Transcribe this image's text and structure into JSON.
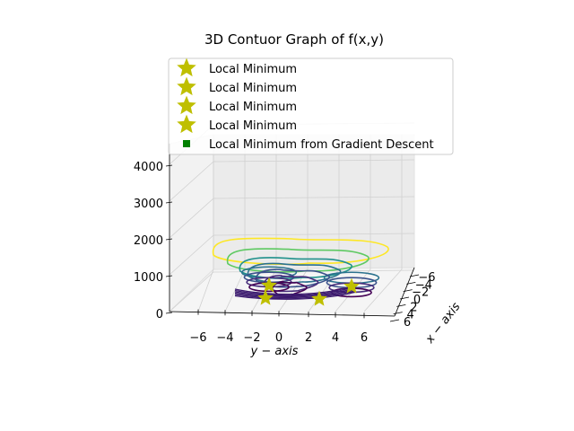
{
  "chart_data": {
    "type": "3d-contour",
    "title": "3D Contuor Graph of f(x,y)",
    "xlabel": "x − axis",
    "ylabel": "y − axis",
    "zlabel": "",
    "y_ticks": [
      "−6",
      "−4",
      "−2",
      "0",
      "2",
      "4",
      "6"
    ],
    "x_ticks": [
      "−6",
      "−4",
      "−2",
      "0",
      "2",
      "4",
      "6"
    ],
    "z_ticks": [
      "0",
      "1000",
      "2000",
      "3000",
      "4000"
    ],
    "zlim": [
      0,
      4400
    ],
    "grid": true,
    "colormap": "viridis",
    "legend": {
      "placement": "top",
      "entries": [
        {
          "label": "Local Minimum",
          "marker": "star",
          "color": "#bfbf00"
        },
        {
          "label": "Local Minimum",
          "marker": "star",
          "color": "#bfbf00"
        },
        {
          "label": "Local Minimum",
          "marker": "star",
          "color": "#bfbf00"
        },
        {
          "label": "Local Minimum",
          "marker": "star",
          "color": "#bfbf00"
        },
        {
          "label": "Local Minimum from Gradient Descent",
          "marker": "square",
          "color": "#008000"
        }
      ]
    },
    "contour_levels": [
      {
        "level": 1750,
        "color": "#fde725"
      },
      {
        "level": 1400,
        "color": "#5ec962"
      },
      {
        "level": 1100,
        "color": "#21918c"
      },
      {
        "level": 900,
        "color": "#2c728e"
      },
      {
        "level": 700,
        "color": "#3b528b"
      },
      {
        "level": 500,
        "color": "#472d7b"
      },
      {
        "level": 300,
        "color": "#440154"
      }
    ]
  }
}
